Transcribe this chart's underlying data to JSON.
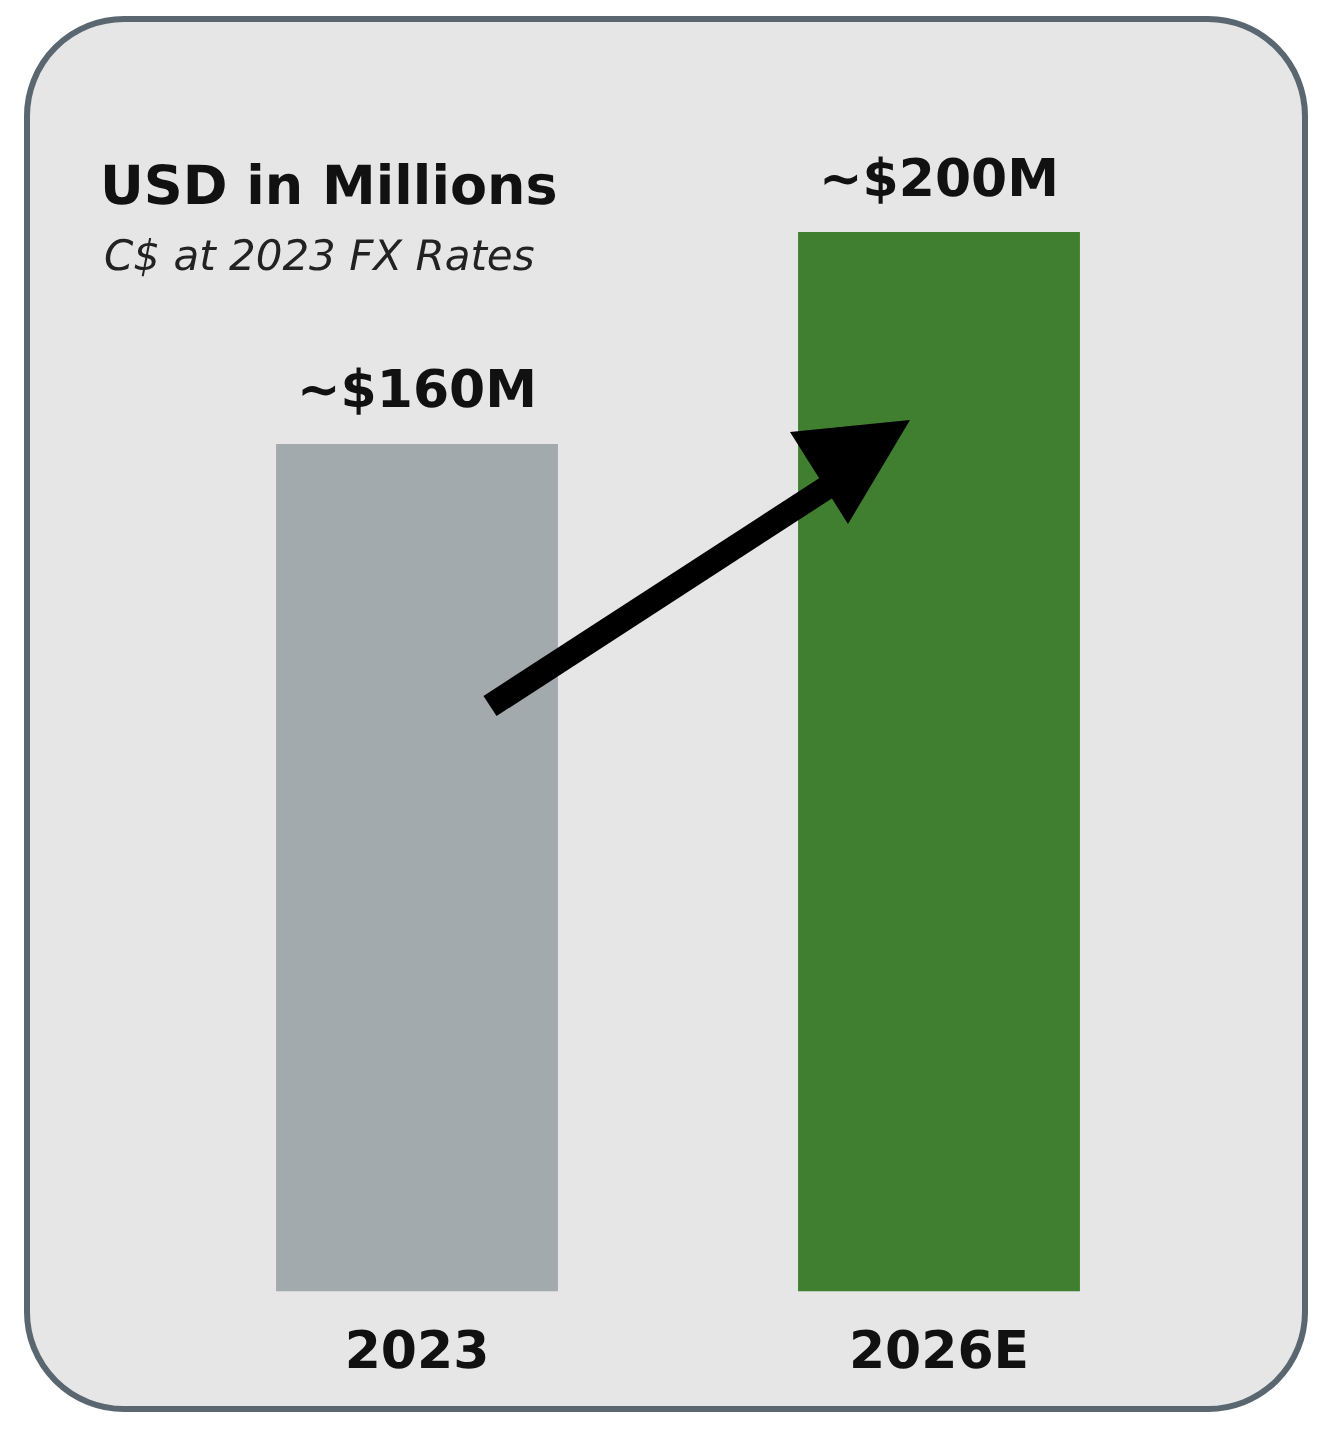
{
  "chart_data": {
    "type": "bar",
    "title": "USD in Millions",
    "subtitle": "C$ at 2023 FX Rates",
    "categories": [
      "2023",
      "2026E"
    ],
    "values": [
      160,
      200
    ],
    "colors": [
      "#a3aaad",
      "#3f7f2f"
    ],
    "value_labels": [
      "~$160M",
      "~$200M"
    ]
  }
}
